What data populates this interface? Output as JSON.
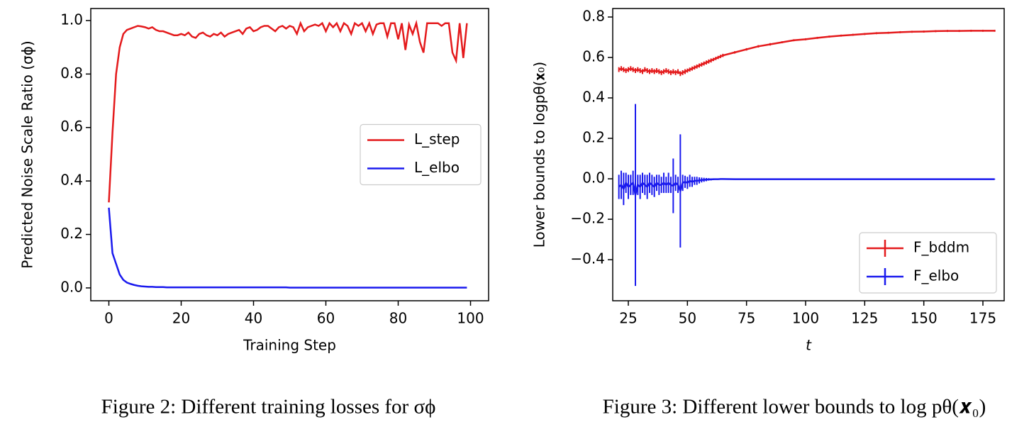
{
  "chart_data": [
    {
      "type": "line",
      "x_label": "Training Step",
      "y_label": "Predicted Noise Scale Ratio (σϕ)",
      "caption": "Figure 2: Different training losses for σϕ",
      "xlim": [
        -5,
        105
      ],
      "ylim": [
        -0.048,
        1.045
      ],
      "xticks": [
        0,
        20,
        40,
        60,
        80,
        100
      ],
      "yticks": [
        {
          "value": 0.0,
          "label": "0.0"
        },
        0.2,
        0.4,
        0.6,
        0.8,
        {
          "value": 1.0,
          "label": "1.0"
        }
      ],
      "legend": "center right",
      "x": [
        0,
        1,
        2,
        3,
        4,
        5,
        6,
        7,
        8,
        9,
        10,
        11,
        12,
        13,
        14,
        15,
        16,
        17,
        18,
        19,
        20,
        21,
        22,
        23,
        24,
        25,
        26,
        27,
        28,
        29,
        30,
        31,
        32,
        33,
        34,
        35,
        36,
        37,
        38,
        39,
        40,
        41,
        42,
        43,
        44,
        45,
        46,
        47,
        48,
        49,
        50,
        51,
        52,
        53,
        54,
        55,
        56,
        57,
        58,
        59,
        60,
        61,
        62,
        63,
        64,
        65,
        66,
        67,
        68,
        69,
        70,
        71,
        72,
        73,
        74,
        75,
        76,
        77,
        78,
        79,
        80,
        81,
        82,
        83,
        84,
        85,
        86,
        87,
        88,
        89,
        90,
        91,
        92,
        93,
        94,
        95,
        96,
        97,
        98,
        99
      ],
      "series": [
        {
          "name": "L_step",
          "color": "#e41a1c",
          "values": [
            0.32,
            0.58,
            0.8,
            0.9,
            0.95,
            0.965,
            0.97,
            0.975,
            0.98,
            0.978,
            0.975,
            0.97,
            0.975,
            0.965,
            0.96,
            0.96,
            0.955,
            0.95,
            0.945,
            0.945,
            0.95,
            0.945,
            0.955,
            0.94,
            0.935,
            0.95,
            0.955,
            0.945,
            0.94,
            0.95,
            0.945,
            0.955,
            0.94,
            0.95,
            0.955,
            0.96,
            0.965,
            0.95,
            0.97,
            0.975,
            0.96,
            0.965,
            0.975,
            0.98,
            0.98,
            0.97,
            0.96,
            0.975,
            0.98,
            0.97,
            0.98,
            0.975,
            0.95,
            0.99,
            0.96,
            0.975,
            0.98,
            0.985,
            0.98,
            0.99,
            0.96,
            0.99,
            0.975,
            0.99,
            0.96,
            0.99,
            0.98,
            0.95,
            0.99,
            0.98,
            0.99,
            0.96,
            0.99,
            0.95,
            0.985,
            0.99,
            0.99,
            0.94,
            0.99,
            0.99,
            0.93,
            0.99,
            0.89,
            0.985,
            0.95,
            0.99,
            0.92,
            0.88,
            0.99,
            0.99,
            0.99,
            0.99,
            0.98,
            0.99,
            0.99,
            0.88,
            0.85,
            0.99,
            0.86,
            0.99
          ]
        },
        {
          "name": "L_elbo",
          "color": "#1a1aee",
          "values": [
            0.3,
            0.13,
            0.09,
            0.05,
            0.03,
            0.02,
            0.015,
            0.011,
            0.008,
            0.006,
            0.005,
            0.004,
            0.004,
            0.003,
            0.003,
            0.003,
            0.002,
            0.002,
            0.002,
            0.002,
            0.002,
            0.002,
            0.002,
            0.002,
            0.002,
            0.002,
            0.002,
            0.002,
            0.002,
            0.002,
            0.002,
            0.002,
            0.002,
            0.002,
            0.002,
            0.002,
            0.002,
            0.002,
            0.002,
            0.002,
            0.002,
            0.002,
            0.002,
            0.002,
            0.002,
            0.002,
            0.002,
            0.002,
            0.002,
            0.002,
            0.001,
            0.001,
            0.001,
            0.001,
            0.001,
            0.001,
            0.001,
            0.001,
            0.001,
            0.001,
            0.001,
            0.001,
            0.001,
            0.001,
            0.001,
            0.001,
            0.001,
            0.001,
            0.001,
            0.001,
            0.001,
            0.001,
            0.001,
            0.001,
            0.001,
            0.001,
            0.001,
            0.001,
            0.001,
            0.001,
            0.001,
            0.001,
            0.001,
            0.001,
            0.001,
            0.001,
            0.001,
            0.001,
            0.001,
            0.001,
            0.001,
            0.001,
            0.001,
            0.001,
            0.001,
            0.001,
            0.001,
            0.001,
            0.001,
            0.001
          ]
        }
      ]
    },
    {
      "type": "errorbar",
      "x_label": "t",
      "y_label": "Lower bounds to logpθ(𝐱₀)",
      "caption": "Figure 3: Different lower bounds to log pθ(𝒙₀)",
      "xlim": [
        18.4,
        184
      ],
      "ylim": [
        -0.603,
        0.842
      ],
      "xticks": [
        25,
        50,
        75,
        100,
        125,
        150,
        175
      ],
      "yticks": [
        {
          "value": -0.4,
          "label": "−0.4"
        },
        {
          "value": -0.2,
          "label": "−0.2"
        },
        {
          "value": 0.0,
          "label": "0.0"
        },
        0.2,
        0.4,
        0.6,
        0.8
      ],
      "legend": "lower right",
      "x": [
        21,
        22,
        23,
        24,
        25,
        26,
        27,
        28,
        29,
        30,
        31,
        32,
        33,
        34,
        35,
        36,
        37,
        38,
        39,
        40,
        41,
        42,
        43,
        44,
        45,
        46,
        47,
        48,
        49,
        50,
        51,
        52,
        53,
        54,
        55,
        56,
        57,
        58,
        59,
        60,
        61,
        62,
        63,
        64,
        65,
        70,
        75,
        80,
        85,
        90,
        95,
        100,
        105,
        110,
        115,
        120,
        125,
        130,
        135,
        140,
        145,
        150,
        155,
        160,
        165,
        170,
        175,
        180
      ],
      "series": [
        {
          "name": "F_bddm",
          "color": "#e41a1c",
          "values": [
            0.54,
            0.545,
            0.54,
            0.535,
            0.54,
            0.545,
            0.54,
            0.535,
            0.54,
            0.535,
            0.53,
            0.54,
            0.535,
            0.53,
            0.535,
            0.53,
            0.535,
            0.53,
            0.525,
            0.53,
            0.535,
            0.53,
            0.525,
            0.53,
            0.525,
            0.53,
            0.52,
            0.525,
            0.53,
            0.535,
            0.54,
            0.545,
            0.55,
            0.555,
            0.56,
            0.565,
            0.57,
            0.575,
            0.58,
            0.585,
            0.59,
            0.595,
            0.6,
            0.605,
            0.61,
            0.625,
            0.64,
            0.655,
            0.665,
            0.675,
            0.685,
            0.69,
            0.697,
            0.703,
            0.708,
            0.712,
            0.716,
            0.72,
            0.722,
            0.725,
            0.727,
            0.728,
            0.73,
            0.731,
            0.731,
            0.732,
            0.732,
            0.732
          ],
          "errors": [
            0.012,
            0.012,
            0.012,
            0.012,
            0.012,
            0.012,
            0.012,
            0.012,
            0.012,
            0.012,
            0.012,
            0.012,
            0.012,
            0.012,
            0.012,
            0.012,
            0.012,
            0.012,
            0.012,
            0.012,
            0.012,
            0.012,
            0.012,
            0.012,
            0.012,
            0.012,
            0.012,
            0.012,
            0.012,
            0.01,
            0.01,
            0.01,
            0.01,
            0.01,
            0.01,
            0.01,
            0.01,
            0.01,
            0.01,
            0.01,
            0.008,
            0.008,
            0.008,
            0.008,
            0.008,
            0.006,
            0.006,
            0.006,
            0.006,
            0.005,
            0.005,
            0.005,
            0.005,
            0.005,
            0.005,
            0.005,
            0.005,
            0.005,
            0.005,
            0.005,
            0.005,
            0.005,
            0.005,
            0.005,
            0.005,
            0.005,
            0.005,
            0.005
          ]
        },
        {
          "name": "F_elbo",
          "color": "#1a1aee",
          "values": [
            -0.04,
            -0.03,
            -0.05,
            -0.02,
            -0.04,
            -0.03,
            -0.02,
            -0.08,
            -0.03,
            -0.04,
            -0.02,
            -0.03,
            -0.04,
            -0.02,
            -0.03,
            -0.04,
            -0.02,
            -0.03,
            -0.03,
            -0.02,
            -0.03,
            -0.02,
            -0.03,
            -0.035,
            -0.02,
            -0.03,
            -0.06,
            -0.02,
            -0.015,
            -0.02,
            -0.01,
            -0.015,
            -0.01,
            -0.01,
            -0.008,
            -0.006,
            -0.005,
            -0.004,
            -0.003,
            -0.003,
            -0.002,
            -0.002,
            -0.002,
            -0.001,
            -0.001,
            -0.002,
            -0.002,
            -0.002,
            -0.002,
            -0.002,
            -0.002,
            -0.002,
            -0.002,
            -0.002,
            -0.002,
            -0.002,
            -0.002,
            -0.002,
            -0.002,
            -0.002,
            -0.002,
            -0.002,
            -0.002,
            -0.002,
            -0.002,
            -0.002,
            -0.002,
            -0.002
          ],
          "errors": [
            0.06,
            0.07,
            0.08,
            0.05,
            0.06,
            0.05,
            0.06,
            0.45,
            0.05,
            0.06,
            0.05,
            0.05,
            0.06,
            0.05,
            0.05,
            0.05,
            0.04,
            0.05,
            0.04,
            0.05,
            0.04,
            0.05,
            0.04,
            0.135,
            0.04,
            0.04,
            0.28,
            0.04,
            0.03,
            0.03,
            0.03,
            0.025,
            0.02,
            0.02,
            0.015,
            0.012,
            0.01,
            0.008,
            0.006,
            0.005,
            0.004,
            0.003,
            0.003,
            0.002,
            0.002,
            0.001,
            0.001,
            0.001,
            0.001,
            0.001,
            0.001,
            0.001,
            0.001,
            0.001,
            0.001,
            0.001,
            0.001,
            0.001,
            0.001,
            0.001,
            0.001,
            0.001,
            0.001,
            0.001,
            0.001,
            0.001,
            0.001,
            0.001
          ]
        }
      ]
    }
  ]
}
